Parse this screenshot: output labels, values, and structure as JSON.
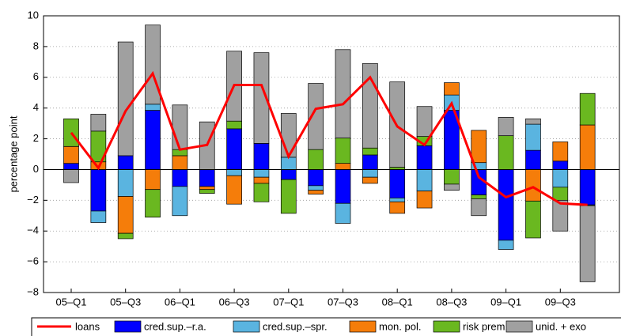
{
  "chart_data": {
    "type": "bar",
    "stacked": true,
    "ylabel": "percentage point",
    "categories": [
      "05–Q1",
      null,
      "05–Q3",
      null,
      "06–Q1",
      null,
      "06–Q3",
      null,
      "07–Q1",
      null,
      "07–Q3",
      null,
      "08–Q1",
      null,
      "08–Q3",
      null,
      "09–Q1",
      null,
      "09–Q3",
      null
    ],
    "ylim": [
      -8,
      10
    ],
    "yticks": [
      {
        "value": -8,
        "label": "−8"
      },
      {
        "value": -6,
        "label": "−6"
      },
      {
        "value": -4,
        "label": "−4"
      },
      {
        "value": -2,
        "label": "−2"
      },
      0,
      2,
      4,
      6,
      8,
      10
    ],
    "grid": true,
    "legend": "bottom",
    "series": [
      {
        "name": "loans",
        "type": "line",
        "color": "#ff0000",
        "values": [
          2.4,
          0.1,
          3.8,
          6.25,
          1.3,
          1.6,
          5.5,
          5.5,
          0.85,
          3.95,
          4.25,
          6.0,
          2.8,
          1.6,
          4.3,
          -0.5,
          -1.8,
          -1.15,
          -2.2,
          -2.3
        ]
      },
      {
        "name": "cred.sup.–r.a.",
        "type": "bar",
        "color": "#0000ff",
        "values": [
          0.4,
          -2.7,
          0.9,
          3.85,
          -1.1,
          -1.1,
          2.65,
          1.7,
          -0.65,
          -1.05,
          -2.2,
          0.95,
          -1.85,
          1.55,
          3.85,
          -1.65,
          -4.6,
          1.25,
          0.55,
          -2.3
        ]
      },
      {
        "name": "cred.sup.–spr.",
        "type": "bar",
        "color": "#5ab4e0",
        "values": [
          0,
          -0.75,
          -1.75,
          0.4,
          -1.9,
          0,
          -0.4,
          -0.5,
          0.8,
          -0.3,
          -1.3,
          -0.5,
          -0.25,
          -1.4,
          1.0,
          0.45,
          -0.6,
          1.7,
          -1.15,
          -0.05
        ]
      },
      {
        "name": "mon. pol.",
        "type": "bar",
        "color": "#f57d0a",
        "values": [
          1.1,
          0.5,
          -2.4,
          -1.3,
          0.9,
          -0.2,
          -1.85,
          -0.4,
          0,
          -0.25,
          0.4,
          -0.4,
          -0.75,
          -1.1,
          0.8,
          2.1,
          0,
          -2.05,
          1.25,
          2.9
        ]
      },
      {
        "name": "risk prem.",
        "type": "bar",
        "color": "#6ab820",
        "values": [
          1.8,
          2.0,
          -0.35,
          -1.8,
          0.4,
          -0.25,
          0.5,
          -1.2,
          -2.2,
          1.3,
          1.65,
          0.45,
          0.15,
          0.6,
          -0.95,
          -0.25,
          2.2,
          -2.4,
          -0.85,
          2.05
        ]
      },
      {
        "name": "unid. + exo",
        "type": "bar",
        "color": "#a0a0a0",
        "values": [
          -0.85,
          1.1,
          7.4,
          5.15,
          2.9,
          3.1,
          4.55,
          5.9,
          2.85,
          4.3,
          5.75,
          5.5,
          5.55,
          1.95,
          -0.4,
          -1.1,
          1.2,
          0.35,
          -2.0,
          -4.95
        ]
      }
    ]
  }
}
